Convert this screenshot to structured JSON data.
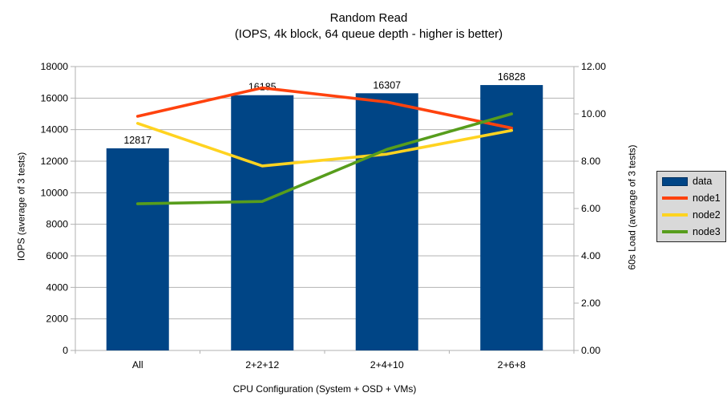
{
  "chart_data": {
    "type": "combo-bar-line",
    "title": "Random Read",
    "subtitle": "(IOPS, 4k block, 64 queue depth - higher is better)",
    "categories": [
      "All",
      "2+2+12",
      "2+4+10",
      "2+6+8"
    ],
    "x_axis_title": "CPU Configuration (System + OSD + VMs)",
    "left_axis": {
      "title": "IOPS (average of 3 tests)",
      "min": 0,
      "max": 18000,
      "step": 2000
    },
    "right_axis": {
      "title": "60s Load (average of 3 tests)",
      "min": 0,
      "max": 12,
      "step": 2,
      "decimals": 2
    },
    "bar_series": {
      "name": "data",
      "color": "#004586",
      "axis": "left",
      "values": [
        12817,
        16185,
        16307,
        16828
      ],
      "data_labels": [
        "12817",
        "16185",
        "16307",
        "16828"
      ]
    },
    "line_series": [
      {
        "name": "node1",
        "color": "#FF420E",
        "axis": "right",
        "values": [
          9.9,
          11.1,
          10.5,
          9.4
        ]
      },
      {
        "name": "node2",
        "color": "#FFD320",
        "axis": "right",
        "values": [
          9.6,
          7.8,
          8.3,
          9.3
        ]
      },
      {
        "name": "node3",
        "color": "#579D1C",
        "axis": "right",
        "values": [
          6.2,
          6.3,
          8.5,
          10.0
        ]
      }
    ],
    "legend": {
      "position": "right",
      "entries": [
        "data",
        "node1",
        "node2",
        "node3"
      ]
    },
    "grid": "horizontal-only",
    "colors": {
      "background": "#ffffff",
      "gridline": "#b3b3b3",
      "axis": "#b0b0b0",
      "text": "#000000",
      "legend_bg": "#d9d9d9",
      "legend_border": "#262626"
    }
  }
}
